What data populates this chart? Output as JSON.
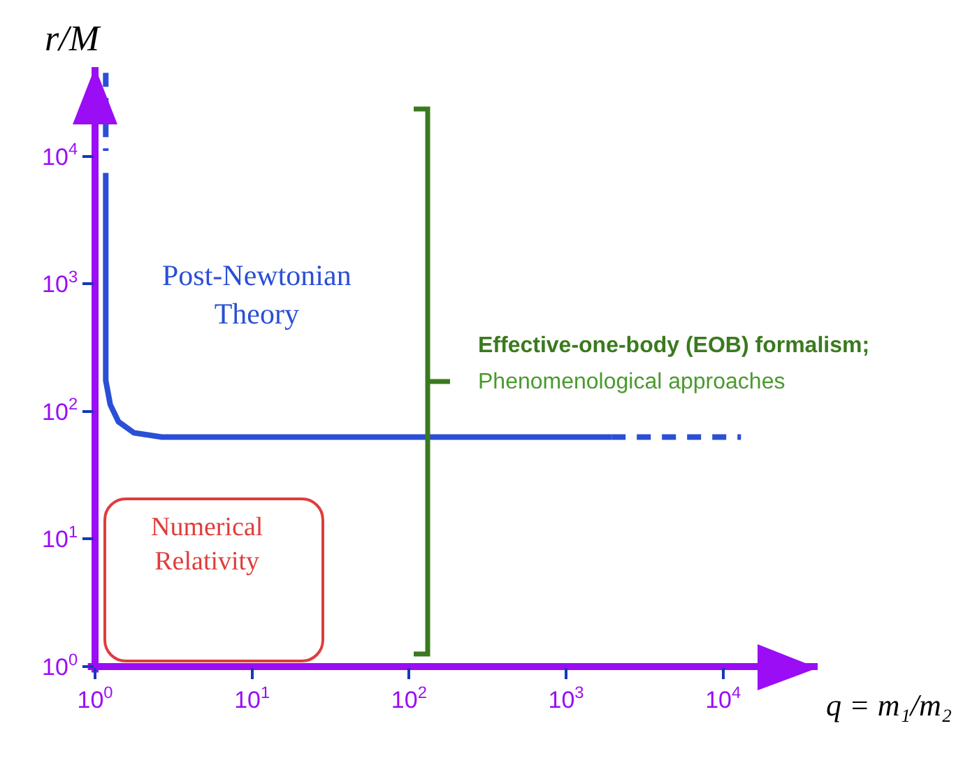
{
  "chart_data": {
    "type": "line",
    "xlabel": "q = m₁/m₂",
    "ylabel": "r/M",
    "log": "xy",
    "xlim": [
      1,
      40000
    ],
    "ylim": [
      1,
      50000
    ],
    "xticks": [
      {
        "value": 1,
        "label": "10$^{0}$"
      },
      {
        "value": 10,
        "label": "10$^{1}$"
      },
      {
        "value": 100,
        "label": "10$^{2}$"
      },
      {
        "value": 1000,
        "label": "10$^{3}$"
      },
      {
        "value": 10000,
        "label": "10$^{4}$"
      }
    ],
    "yticks": [
      {
        "value": 1,
        "label": "10$^{0}$"
      },
      {
        "value": 10,
        "label": "10$^{1}$"
      },
      {
        "value": 100,
        "label": "10$^{2}$"
      },
      {
        "value": 1000,
        "label": "10$^{3}$"
      },
      {
        "value": 10000,
        "label": "10$^{4}$"
      }
    ],
    "grid": false,
    "marker": "none",
    "series": [
      {
        "color": "#2a4fd6",
        "line_style": "solid",
        "x": [
          1.17,
          1.17,
          1.25,
          1.41,
          1.77,
          2.66,
          1950
        ],
        "values": [
          7400,
          175,
          113,
          83,
          68,
          63,
          63
        ]
      },
      {
        "color": "#2a4fd6",
        "line_style": "dashed",
        "x": [
          1950,
          13000
        ],
        "values": [
          63,
          63
        ]
      },
      {
        "color": "#2a4fd6",
        "line_style": "dashed",
        "x": [
          1.17,
          1.17
        ],
        "values": [
          45000,
          11000
        ]
      }
    ],
    "annotations": [
      "Post-Newtonian\nTheory",
      "Numerical\nRelativity",
      "Effective-one-body (EOB) formalism;",
      "Phenomenological approaches"
    ]
  }
}
